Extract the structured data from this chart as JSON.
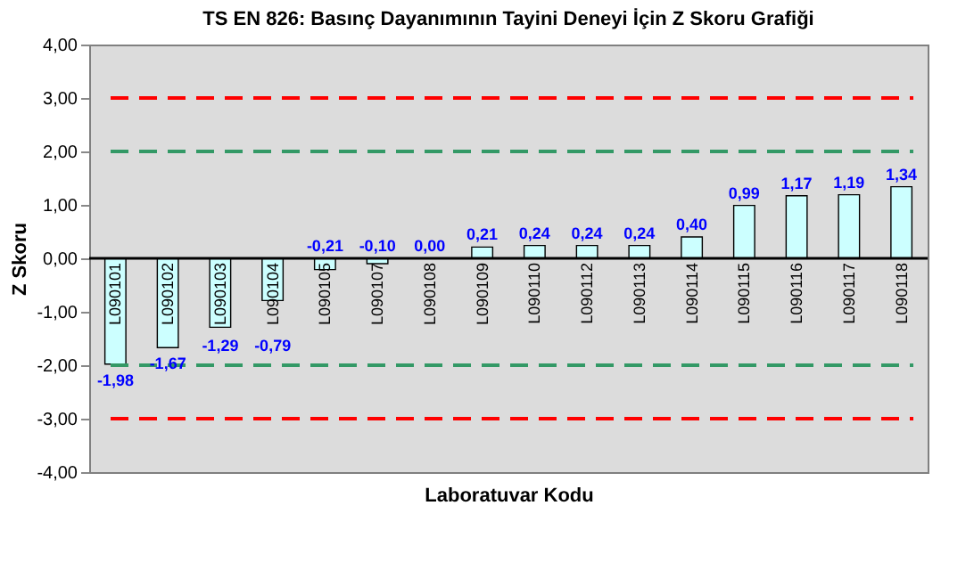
{
  "chart_data": {
    "type": "bar",
    "title": "TS EN 826: Basınç Dayanımının Tayini Deneyi İçin Z Skoru Grafiği",
    "xlabel": "Laboratuvar Kodu",
    "ylabel": "Z Skoru",
    "categories": [
      "L090101",
      "L090102",
      "L090103",
      "L090104",
      "L090105",
      "L090107",
      "L090108",
      "L090109",
      "L090110",
      "L090112",
      "L090113",
      "L090114",
      "L090115",
      "L090116",
      "L090117",
      "L090118"
    ],
    "values": [
      -1.98,
      -1.67,
      -1.29,
      -0.79,
      -0.21,
      -0.1,
      0.0,
      0.21,
      0.24,
      0.24,
      0.24,
      0.4,
      0.99,
      1.17,
      1.19,
      1.34
    ],
    "value_labels": [
      "-1,98",
      "-1,67",
      "-1,29",
      "-0,79",
      "-0,21",
      "-0,10",
      "0,00",
      "0,21",
      "0,24",
      "0,24",
      "0,24",
      "0,40",
      "0,99",
      "1,17",
      "1,19",
      "1,34"
    ],
    "color": "#ccffff",
    "ylim": [
      -4,
      4
    ],
    "yticks": [
      {
        "value": -4,
        "label": "-4,00"
      },
      {
        "value": -3,
        "label": "-3,00"
      },
      {
        "value": -2,
        "label": "-2,00"
      },
      {
        "value": -1,
        "label": "-1,00"
      },
      {
        "value": 0,
        "label": "0,00"
      },
      {
        "value": 1,
        "label": "1,00"
      },
      {
        "value": 2,
        "label": "2,00"
      },
      {
        "value": 3,
        "label": "3,00"
      },
      {
        "value": 4,
        "label": "4,00"
      }
    ],
    "ref_lines": [
      {
        "axis": "y",
        "value": 3,
        "color": "#ff0000",
        "line_style": "dashed"
      },
      {
        "axis": "y",
        "value": 2,
        "color": "#339966",
        "line_style": "dashed"
      },
      {
        "axis": "y",
        "value": -2,
        "color": "#339966",
        "line_style": "dashed"
      },
      {
        "axis": "y",
        "value": -3,
        "color": "#ff0000",
        "line_style": "dashed"
      }
    ],
    "grid": false
  }
}
